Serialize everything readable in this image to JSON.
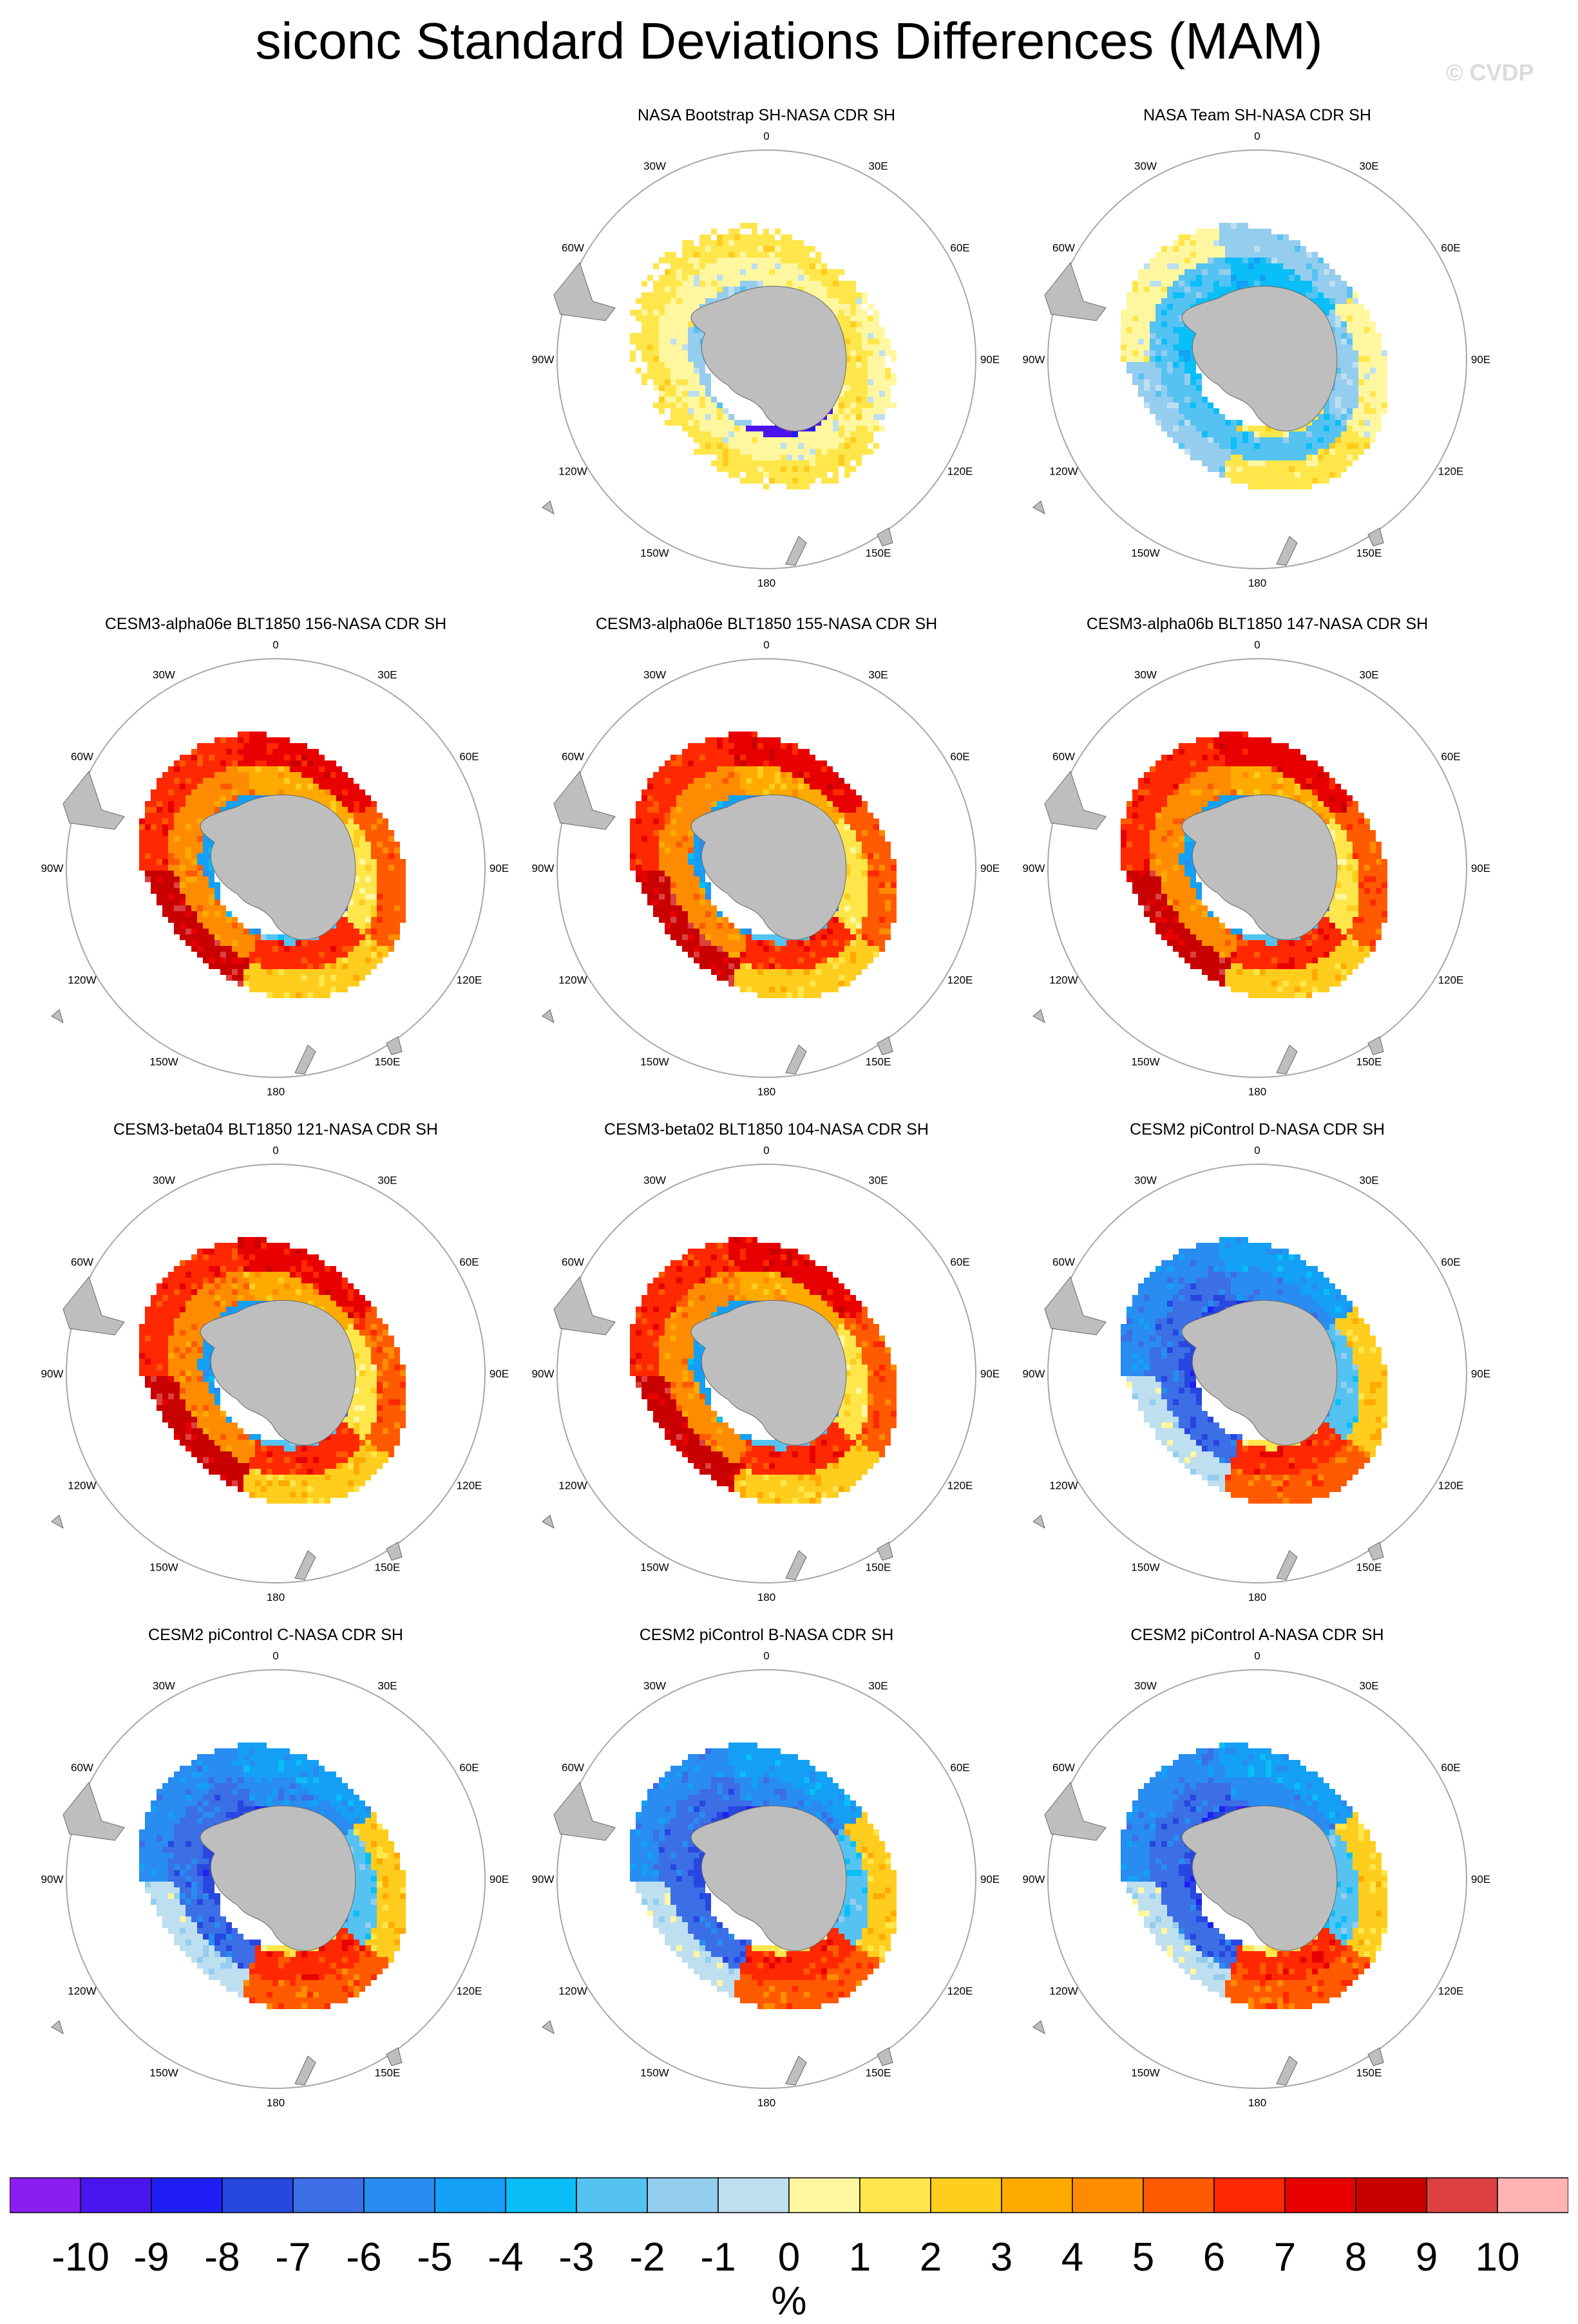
{
  "title": "siconc Standard Deviations Differences (MAM)",
  "watermark": "© CVDP",
  "chart_data": {
    "type": "heatmap",
    "projection": "south-polar-stereographic",
    "units": "%",
    "colorbar_levels": [
      "-10",
      "-9",
      "-8",
      "-7",
      "-6",
      "-5",
      "-4",
      "-3",
      "-2",
      "-1",
      "0",
      "1",
      "2",
      "3",
      "4",
      "5",
      "6",
      "7",
      "8",
      "9",
      "10"
    ],
    "colorbar_colors": [
      "#8a1ef0",
      "#4a14f0",
      "#1e1ef5",
      "#2846e0",
      "#3c6ee6",
      "#288cf0",
      "#14a0f5",
      "#0abef8",
      "#55c3f2",
      "#94cdee",
      "#bedfef",
      "#fff7a0",
      "#ffe64b",
      "#ffcd1e",
      "#ffaa00",
      "#ff8c00",
      "#ff5a00",
      "#ff2800",
      "#e80000",
      "#c80000",
      "#dc4040",
      "#ffb4b4"
    ],
    "lon_labels": [
      "0",
      "30E",
      "60E",
      "90E",
      "120E",
      "150E",
      "180",
      "150W",
      "120W",
      "90W",
      "60W",
      "30W"
    ],
    "panels": [
      {
        "title": "NASA Bootstrap SH-NASA CDR SH",
        "pattern": "bootstrap"
      },
      {
        "title": "NASA Team SH-NASA CDR SH",
        "pattern": "team"
      },
      {
        "title": "CESM3-alpha06e BLT1850 156-NASA CDR SH",
        "pattern": "cesm3"
      },
      {
        "title": "CESM3-alpha06e BLT1850 155-NASA CDR SH",
        "pattern": "cesm3"
      },
      {
        "title": "CESM3-alpha06b BLT1850 147-NASA CDR SH",
        "pattern": "cesm3"
      },
      {
        "title": "CESM3-beta04 BLT1850 121-NASA CDR SH",
        "pattern": "cesm3"
      },
      {
        "title": "CESM3-beta02 BLT1850 104-NASA CDR SH",
        "pattern": "cesm3"
      },
      {
        "title": "CESM2 piControl D-NASA CDR SH",
        "pattern": "cesm2"
      },
      {
        "title": "CESM2 piControl C-NASA CDR SH",
        "pattern": "cesm2"
      },
      {
        "title": "CESM2 piControl B-NASA CDR SH",
        "pattern": "cesm2"
      },
      {
        "title": "CESM2 piControl A-NASA CDR SH",
        "pattern": "cesm2"
      }
    ]
  }
}
